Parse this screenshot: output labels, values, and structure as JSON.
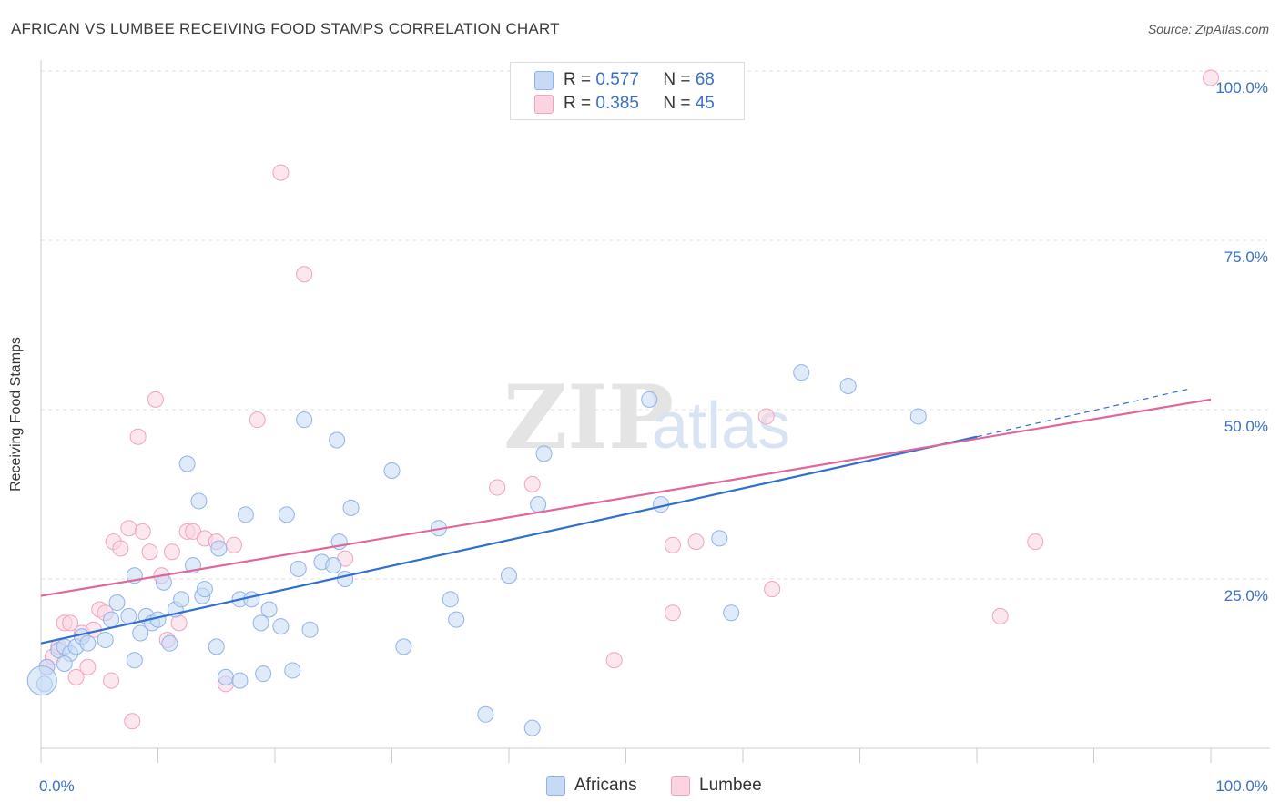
{
  "title": "AFRICAN VS LUMBEE RECEIVING FOOD STAMPS CORRELATION CHART",
  "source": "Source: ZipAtlas.com",
  "watermark": {
    "zip": "ZIP",
    "atlas": "atlas"
  },
  "legend": {
    "r_label": "R =",
    "n_label": "N =",
    "rows": [
      {
        "r": "0.577",
        "n": "68",
        "color": "#a8c8f0"
      },
      {
        "r": "0.385",
        "n": "45",
        "color": "#f8bcd0"
      }
    ]
  },
  "bottom_legend": [
    {
      "label": "Africans",
      "color": "#a8c8f0"
    },
    {
      "label": "Lumbee",
      "color": "#f8bcd0"
    }
  ],
  "colors": {
    "africans_line": "#2f6fcf",
    "lumbee_line": "#e0679a",
    "africans_fill": "#c6daf5",
    "lumbee_fill": "#fbd3e1",
    "axis_text": "#3a6fc8"
  },
  "chart_data": {
    "type": "scatter",
    "title": "AFRICAN VS LUMBEE RECEIVING FOOD STAMPS CORRELATION CHART",
    "xlabel": "",
    "ylabel": "Receiving Food Stamps",
    "xlim": [
      0,
      100
    ],
    "ylim": [
      0,
      100
    ],
    "x_tick_labels": [
      "0.0%",
      "100.0%"
    ],
    "y_tick_labels": [
      "25.0%",
      "50.0%",
      "75.0%",
      "100.0%"
    ],
    "y_ticks": [
      25,
      50,
      75,
      100
    ],
    "grid": true,
    "series": [
      {
        "name": "Africans",
        "r": 0.577,
        "n": 68,
        "trend": {
          "x0": 0,
          "y0": 15.5,
          "x1": 80,
          "y1": 46.0,
          "dash_to_x": 98,
          "dash_to_y": 53.0
        },
        "points": [
          [
            0.3,
            9.5
          ],
          [
            0.5,
            12
          ],
          [
            1.5,
            14.5
          ],
          [
            2,
            15
          ],
          [
            2.5,
            14
          ],
          [
            3,
            15
          ],
          [
            3.5,
            16.5
          ],
          [
            4,
            15.5
          ],
          [
            5.5,
            16
          ],
          [
            6,
            19
          ],
          [
            6.5,
            21.5
          ],
          [
            7.5,
            19.5
          ],
          [
            8,
            13
          ],
          [
            8,
            25.5
          ],
          [
            8.5,
            17
          ],
          [
            9,
            19.5
          ],
          [
            9.5,
            18.5
          ],
          [
            10,
            19
          ],
          [
            10.5,
            24.5
          ],
          [
            11,
            15.5
          ],
          [
            11.5,
            20.5
          ],
          [
            12,
            22
          ],
          [
            12.5,
            42
          ],
          [
            13,
            27
          ],
          [
            13.5,
            36.5
          ],
          [
            13.8,
            22.5
          ],
          [
            14,
            23.5
          ],
          [
            15,
            15
          ],
          [
            15.2,
            29.5
          ],
          [
            15.8,
            10.5
          ],
          [
            17,
            10
          ],
          [
            17,
            22
          ],
          [
            17.5,
            34.5
          ],
          [
            18,
            22
          ],
          [
            18.8,
            18.5
          ],
          [
            19,
            11
          ],
          [
            19.5,
            20.5
          ],
          [
            20.5,
            18
          ],
          [
            21,
            34.5
          ],
          [
            21.5,
            11.5
          ],
          [
            22,
            26.5
          ],
          [
            22.5,
            48.5
          ],
          [
            23,
            17.5
          ],
          [
            24,
            27.5
          ],
          [
            25,
            27
          ],
          [
            25.3,
            45.5
          ],
          [
            25.5,
            30.5
          ],
          [
            26,
            25
          ],
          [
            26.5,
            35.5
          ],
          [
            30,
            41
          ],
          [
            31,
            15
          ],
          [
            34,
            32.5
          ],
          [
            35,
            22
          ],
          [
            35.5,
            19
          ],
          [
            38,
            5
          ],
          [
            40,
            25.5
          ],
          [
            42,
            3
          ],
          [
            42.5,
            36
          ],
          [
            43,
            43.5
          ],
          [
            52,
            51.5
          ],
          [
            53,
            36
          ],
          [
            58,
            31
          ],
          [
            59,
            20
          ],
          [
            65,
            55.5
          ],
          [
            69,
            53.5
          ],
          [
            75,
            49
          ],
          [
            0.1,
            10.0
          ],
          [
            2.0,
            12.5
          ]
        ]
      },
      {
        "name": "Lumbee",
        "r": 0.385,
        "n": 45,
        "trend": {
          "x0": 0,
          "y0": 22.5,
          "x1": 100,
          "y1": 51.5
        },
        "points": [
          [
            0.5,
            12
          ],
          [
            1,
            13.5
          ],
          [
            1.5,
            15
          ],
          [
            2,
            18.5
          ],
          [
            2.5,
            18.5
          ],
          [
            3,
            10.5
          ],
          [
            3.5,
            17
          ],
          [
            4,
            12
          ],
          [
            4.5,
            17.5
          ],
          [
            5,
            20.5
          ],
          [
            5.5,
            20
          ],
          [
            6,
            10
          ],
          [
            6.2,
            30.5
          ],
          [
            6.8,
            29.5
          ],
          [
            7.5,
            32.5
          ],
          [
            7.8,
            4
          ],
          [
            8.3,
            46
          ],
          [
            8.7,
            32
          ],
          [
            9.3,
            29
          ],
          [
            9.8,
            51.5
          ],
          [
            10.3,
            25.5
          ],
          [
            10.8,
            16
          ],
          [
            11.2,
            29
          ],
          [
            11.8,
            18.5
          ],
          [
            12.5,
            32
          ],
          [
            13,
            32
          ],
          [
            14,
            31
          ],
          [
            15,
            30.5
          ],
          [
            15.8,
            9.5
          ],
          [
            16.5,
            30
          ],
          [
            18.5,
            48.5
          ],
          [
            20.5,
            85
          ],
          [
            22.5,
            70
          ],
          [
            26,
            28
          ],
          [
            39,
            38.5
          ],
          [
            42,
            39
          ],
          [
            49,
            13
          ],
          [
            54,
            20
          ],
          [
            54,
            30
          ],
          [
            56,
            30.5
          ],
          [
            62.5,
            23.5
          ],
          [
            62,
            49
          ],
          [
            82,
            19.5
          ],
          [
            85,
            30.5
          ],
          [
            100,
            99
          ]
        ]
      }
    ]
  }
}
